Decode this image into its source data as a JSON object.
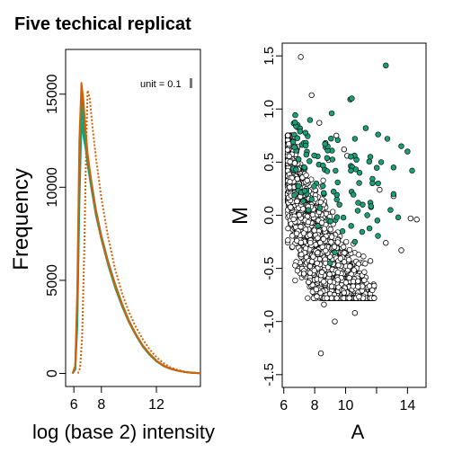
{
  "chart_data": [
    {
      "type": "line",
      "title": "Five techical replicat",
      "xlabel": "log (base 2) intensity",
      "ylabel": "Frequency",
      "xlim": [
        5.4,
        15.2
      ],
      "ylim": [
        -700,
        17400
      ],
      "xticks": [
        6,
        8,
        12
      ],
      "xtick_labels": [
        "6",
        "8",
        "12"
      ],
      "yticks": [
        0,
        5000,
        10000,
        15000
      ],
      "ytick_labels": [
        "0",
        "5000",
        "10000",
        "15000"
      ],
      "annotation": "unit = 0.1",
      "grid": false,
      "series": [
        {
          "color": "#1b9e77",
          "dash": false,
          "x": [
            5.9,
            6.1,
            6.25,
            6.4,
            6.55,
            6.7,
            6.85,
            7.0,
            7.3,
            7.6,
            8.0,
            8.5,
            9.0,
            9.5,
            10.0,
            10.5,
            11.0,
            11.5,
            12.0,
            12.5,
            13.0,
            13.5,
            14.0,
            14.5,
            15.2
          ],
          "y": [
            0,
            200,
            2500,
            9000,
            13500,
            12700,
            12100,
            11200,
            9800,
            8500,
            7200,
            5800,
            4600,
            3600,
            2750,
            2050,
            1450,
            1000,
            650,
            400,
            250,
            150,
            80,
            40,
            10
          ]
        },
        {
          "color": "#1b9e77",
          "dash": false,
          "x": [
            5.9,
            6.1,
            6.25,
            6.4,
            6.55,
            6.7,
            6.85,
            7.0,
            7.3,
            7.6,
            8.0,
            8.5,
            9.0,
            9.5,
            10.0,
            10.5,
            11.0,
            11.5,
            12.0,
            12.5,
            13.0,
            13.5,
            14.0,
            14.5,
            15.2
          ],
          "y": [
            0,
            300,
            3500,
            11000,
            14400,
            13200,
            12400,
            11400,
            10000,
            8700,
            7300,
            5900,
            4700,
            3700,
            2800,
            2100,
            1500,
            1050,
            680,
            420,
            260,
            160,
            85,
            45,
            10
          ]
        },
        {
          "color": "#1b9e77",
          "dash": false,
          "x": [
            5.9,
            6.1,
            6.25,
            6.4,
            6.55,
            6.7,
            6.85,
            7.0,
            7.3,
            7.6,
            8.0,
            8.5,
            9.0,
            9.5,
            10.0,
            10.5,
            11.0,
            11.5,
            12.0,
            12.5,
            13.0,
            13.5,
            14.0,
            14.5,
            15.2
          ],
          "y": [
            0,
            250,
            3000,
            10500,
            14900,
            13700,
            12600,
            11600,
            10200,
            8800,
            7400,
            6000,
            4800,
            3750,
            2850,
            2120,
            1520,
            1060,
            690,
            430,
            265,
            160,
            85,
            45,
            10
          ]
        },
        {
          "color": "#d95f02",
          "dash": false,
          "x": [
            5.9,
            6.1,
            6.25,
            6.4,
            6.55,
            6.7,
            6.85,
            7.0,
            7.3,
            7.6,
            8.0,
            8.5,
            9.0,
            9.5,
            10.0,
            10.5,
            11.0,
            11.5,
            12.0,
            12.5,
            13.0,
            13.5,
            14.0,
            14.5,
            15.2
          ],
          "y": [
            0,
            400,
            4500,
            12500,
            15600,
            14600,
            13100,
            11800,
            10100,
            8700,
            7300,
            5900,
            4700,
            3700,
            2800,
            2100,
            1500,
            1050,
            680,
            420,
            260,
            160,
            85,
            45,
            10
          ]
        },
        {
          "color": "#d95f02",
          "dash": true,
          "x": [
            6.3,
            6.45,
            6.6,
            6.75,
            6.9,
            7.0,
            7.15,
            7.3,
            7.6,
            8.0,
            8.5,
            9.0,
            9.5,
            10.0,
            10.5,
            11.0,
            11.5,
            12.0,
            12.5,
            13.0,
            13.5,
            14.0,
            14.5,
            15.2
          ],
          "y": [
            0,
            300,
            2000,
            6500,
            12500,
            15200,
            14800,
            13600,
            11600,
            9400,
            7300,
            5600,
            4300,
            3300,
            2500,
            1850,
            1300,
            880,
            560,
            340,
            200,
            110,
            55,
            15
          ]
        }
      ]
    },
    {
      "type": "scatter",
      "title": "",
      "xlabel": "A",
      "ylabel": "M",
      "xlim": [
        5.9,
        15.2
      ],
      "ylim": [
        -1.62,
        1.62
      ],
      "xticks": [
        6,
        8,
        10,
        12,
        14
      ],
      "xtick_labels": [
        "6",
        "8",
        "10",
        "",
        "14"
      ],
      "yticks": [
        -1.5,
        -1.0,
        -0.5,
        0.0,
        0.5,
        1.0,
        1.5
      ],
      "ytick_labels": [
        "-1.5",
        "-1.0",
        "-0.5",
        "0.0",
        "0.5",
        "1.0",
        "1.5"
      ],
      "grid": false,
      "highlight_color": "#1b9e77",
      "series": [
        {
          "style": "open-circle",
          "x": [
            7.1,
            7.8,
            8.3,
            9.4,
            8.7,
            9.9,
            10.1,
            8.9,
            12.2,
            13.1,
            14.2,
            14.6,
            8.6,
            9.3,
            10.6,
            7.6,
            9.9,
            11.6,
            13.6,
            8.4,
            9.1,
            7.3,
            7.7,
            10.8,
            12.6
          ],
          "y": [
            1.49,
            1.13,
            0.87,
            0.75,
            0.68,
            0.62,
            0.56,
            0.52,
            0.24,
            0.18,
            -0.03,
            -0.04,
            -0.84,
            -1.0,
            -0.92,
            -0.63,
            -0.73,
            -0.43,
            -0.33,
            -1.3,
            -0.67,
            -0.55,
            -0.48,
            -0.62,
            -0.26
          ]
        },
        {
          "style": "filled-circle",
          "x": [
            12.6,
            10.3,
            10.4,
            9.1,
            11.3,
            10.6,
            12.1,
            12.7,
            13.6,
            14.0,
            11.6,
            12.3,
            13.1,
            10.9,
            8.1,
            8.6,
            9.6,
            7.6,
            8.9,
            9.8,
            10.6,
            12.1,
            13.1,
            11.1,
            9.3,
            9.0,
            7.8,
            8.2,
            11.4,
            12.9,
            13.4,
            14.3
          ],
          "y": [
            1.41,
            1.09,
            1.1,
            0.96,
            0.82,
            0.72,
            0.76,
            0.72,
            0.65,
            0.6,
            0.55,
            0.5,
            0.45,
            0.4,
            0.3,
            0.2,
            0.1,
            0.05,
            -0.05,
            -0.15,
            -0.25,
            0.3,
            0.2,
            0.1,
            -0.35,
            -0.45,
            0.15,
            -0.1,
            0.0,
            0.05,
            -0.02,
            0.42
          ]
        }
      ]
    }
  ]
}
